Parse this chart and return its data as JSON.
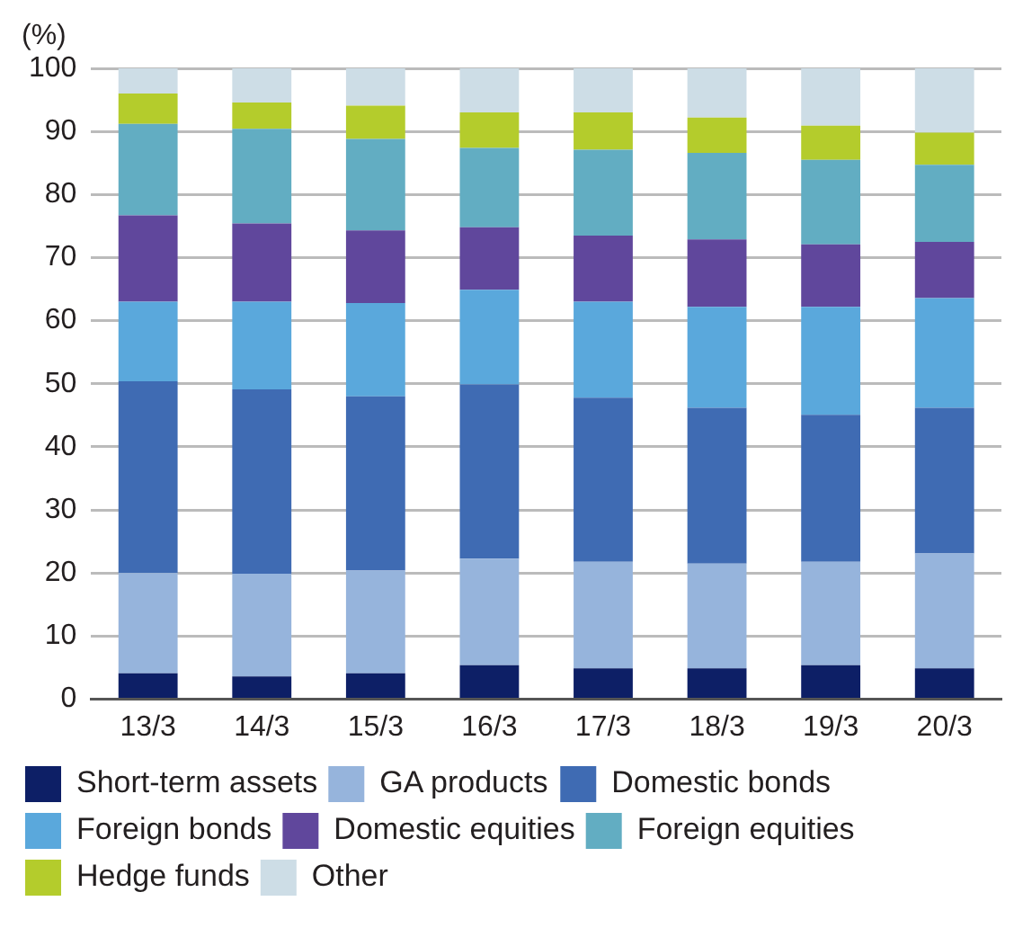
{
  "chart_data": {
    "type": "bar",
    "stacked": true,
    "ylabel": "(%)",
    "categories": [
      "13/3",
      "14/3",
      "15/3",
      "16/3",
      "17/3",
      "18/3",
      "19/3",
      "20/3"
    ],
    "ylim": [
      0,
      100
    ],
    "yticks": [
      0,
      10,
      20,
      30,
      40,
      50,
      60,
      70,
      80,
      90,
      100
    ],
    "grid": "y",
    "legend": "bottom",
    "series": [
      {
        "name": "Short-term assets",
        "color": "#0d1f66",
        "values": [
          4.1,
          3.6,
          4.1,
          5.4,
          4.9,
          4.9,
          5.4,
          4.9
        ]
      },
      {
        "name": "GA products",
        "color": "#96b4dc",
        "values": [
          15.9,
          16.3,
          16.3,
          16.9,
          16.9,
          16.6,
          16.4,
          18.2
        ]
      },
      {
        "name": "Domestic bonds",
        "color": "#3f6bb3",
        "values": [
          30.4,
          29.2,
          27.6,
          27.6,
          26.0,
          24.7,
          23.3,
          23.1
        ]
      },
      {
        "name": "Foreign bonds",
        "color": "#5aa8dc",
        "values": [
          12.6,
          13.9,
          14.8,
          15.0,
          15.2,
          16.0,
          17.1,
          17.4
        ]
      },
      {
        "name": "Domestic equities",
        "color": "#60479c",
        "values": [
          13.7,
          12.4,
          11.5,
          9.9,
          10.5,
          10.7,
          9.9,
          8.9
        ]
      },
      {
        "name": "Foreign equities",
        "color": "#62adc2",
        "values": [
          14.5,
          15.0,
          14.5,
          12.6,
          13.6,
          13.7,
          13.4,
          12.2
        ]
      },
      {
        "name": "Hedge funds",
        "color": "#b4cc2c",
        "values": [
          4.8,
          4.2,
          5.3,
          5.6,
          5.9,
          5.6,
          5.4,
          5.1
        ]
      },
      {
        "name": "Other",
        "color": "#cddde6",
        "values": [
          4.0,
          5.4,
          5.9,
          7.0,
          7.0,
          7.8,
          9.1,
          10.2
        ]
      }
    ]
  }
}
